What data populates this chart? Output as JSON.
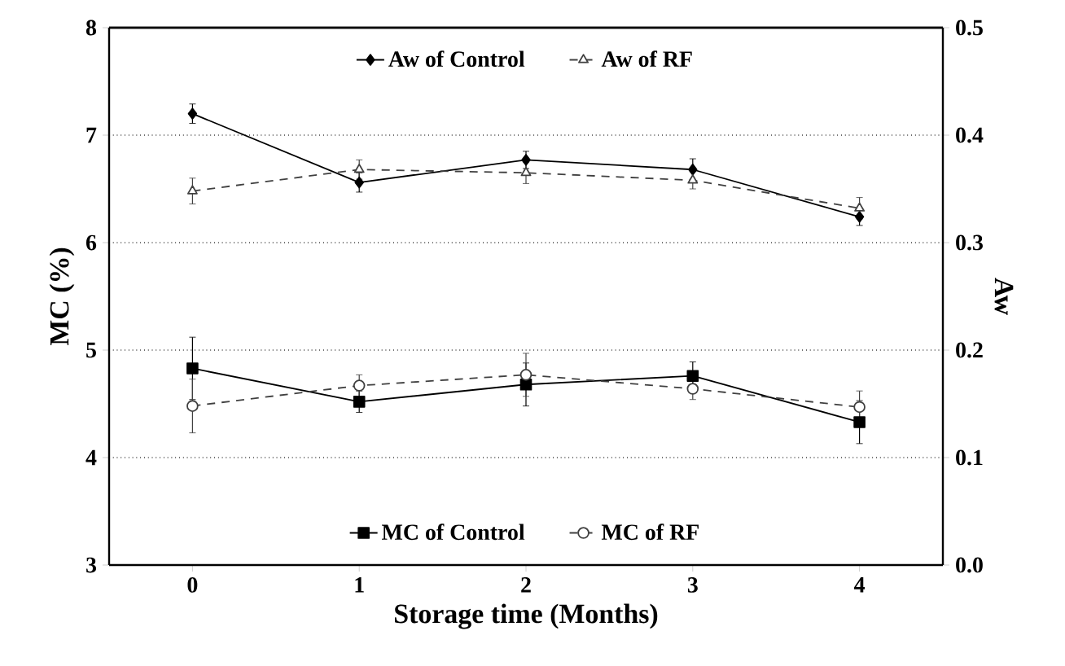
{
  "chart_data": {
    "type": "line",
    "xlabel": "Storage time (Months)",
    "ylabel": "MC (%)",
    "y2label": "Aw",
    "x": [
      0,
      1,
      2,
      3,
      4
    ],
    "xlim": [
      -0.5,
      4.5
    ],
    "xticks": [
      0,
      1,
      2,
      3,
      4
    ],
    "ylim": [
      3,
      8
    ],
    "yticks": [
      3,
      4,
      5,
      6,
      7,
      8
    ],
    "y2lim": [
      0,
      0.5
    ],
    "y2ticks": [
      {
        "value": 0,
        "label": "0.0"
      },
      {
        "value": 0.1,
        "label": "0.1"
      },
      {
        "value": 0.2,
        "label": "0.2"
      },
      {
        "value": 0.3,
        "label": "0.3"
      },
      {
        "value": 0.4,
        "label": "0.4"
      },
      {
        "value": 0.5,
        "label": "0.5"
      }
    ],
    "grid": "y",
    "legend": "top",
    "series": [
      {
        "name": "Aw of Control",
        "color": "#000000",
        "axis": "y2",
        "marker": "diamond",
        "line_style": "solid",
        "values": [
          0.42,
          0.356,
          0.377,
          0.368,
          0.324
        ],
        "errors": [
          0.009,
          0.009,
          0.008,
          0.01,
          0.008
        ]
      },
      {
        "name": "Aw of RF",
        "color": "#404040",
        "axis": "y2",
        "marker": "triangle",
        "line_style": "dashed",
        "values": [
          0.348,
          0.368,
          0.365,
          0.358,
          0.332
        ],
        "errors": [
          0.012,
          0.009,
          0.01,
          0.008,
          0.01
        ]
      },
      {
        "name": "MC of Control",
        "color": "#000000",
        "axis": "y",
        "marker": "square",
        "line_style": "solid",
        "values": [
          4.83,
          4.52,
          4.68,
          4.76,
          4.33
        ],
        "errors": [
          0.29,
          0.1,
          0.2,
          0.13,
          0.2
        ]
      },
      {
        "name": "MC of RF",
        "color": "#404040",
        "axis": "y",
        "marker": "circle",
        "line_style": "dashed",
        "values": [
          4.48,
          4.67,
          4.77,
          4.64,
          4.47
        ],
        "errors": [
          0.25,
          0.1,
          0.2,
          0.1,
          0.15
        ]
      }
    ]
  }
}
